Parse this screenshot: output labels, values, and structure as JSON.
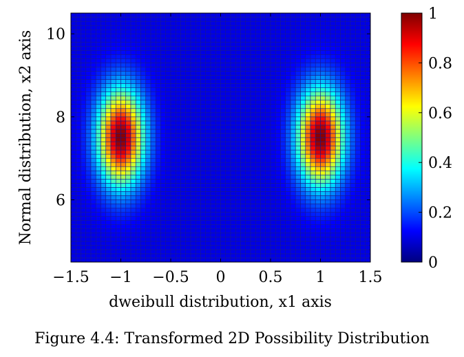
{
  "figure": {
    "caption": "Figure 4.4: Transformed 2D Possibility Distribution"
  },
  "chart_data": {
    "type": "heatmap",
    "xlabel": "dweibull distribution, x1 axis",
    "ylabel": "Normal distribution, x2 axis",
    "xlim": [
      -1.5,
      1.5
    ],
    "ylim": [
      4.5,
      10.5
    ],
    "x_ticks": [
      -1.5,
      -1,
      -0.5,
      0,
      0.5,
      1,
      1.5
    ],
    "x_tick_labels": [
      "−1.5",
      "−1",
      "−0.5",
      "0",
      "0.5",
      "1",
      "1.5"
    ],
    "y_ticks": [
      6,
      8,
      10
    ],
    "y_tick_labels": [
      "6",
      "8",
      "10"
    ],
    "grid": {
      "x_cells": 60,
      "y_cells": 60,
      "cell_edge_color": "#1a1a8c"
    },
    "peaks": [
      {
        "x": -1.0,
        "y": 7.5,
        "value": 1.0
      },
      {
        "x": 1.0,
        "y": 7.5,
        "value": 1.0
      }
    ],
    "peak_spread": {
      "x_sigma": 0.16,
      "y_sigma": 0.8
    },
    "colorbar": {
      "range": [
        0,
        1
      ],
      "ticks": [
        0,
        0.2,
        0.4,
        0.6,
        0.8,
        1
      ],
      "tick_labels": [
        "0",
        "0.2",
        "0.4",
        "0.6",
        "0.8",
        "1"
      ],
      "colormap": "jet",
      "colors": [
        "#00007f",
        "#0000ff",
        "#007fff",
        "#00ffff",
        "#7fff7f",
        "#ffff00",
        "#ff7f00",
        "#ff0000",
        "#7f0000"
      ]
    },
    "background_value": 0.0
  }
}
